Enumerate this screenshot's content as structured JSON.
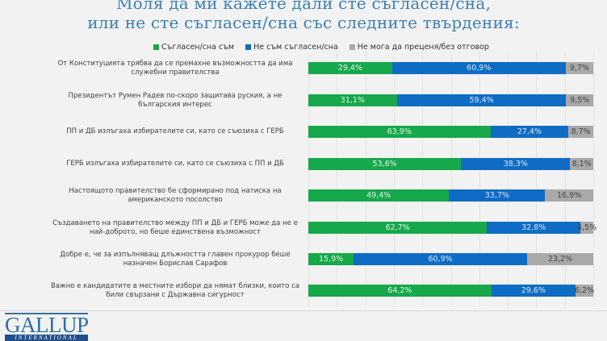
{
  "title": {
    "line1": "Моля да ми кажете дали сте съгласен/сна,",
    "line2": "или не сте съгласен/сна със следните твърдения:"
  },
  "legend": [
    {
      "label": "Съгласен/сна съм",
      "color": "#17a84b"
    },
    {
      "label": "Не съм съгласен/сна",
      "color": "#0f6cc4"
    },
    {
      "label": "Не мога да преценя/без отговор",
      "color": "#a9a9a9"
    }
  ],
  "logo": {
    "name": "GALLUP",
    "sub": "INTERNATIONAL"
  },
  "chart_data": {
    "type": "bar",
    "orientation": "horizontal",
    "stacked": true,
    "title": "Моля да ми кажете дали сте съгласен/сна, или не сте съгласен/сна със следните твърдения:",
    "xlabel": "",
    "ylabel": "",
    "xlim": [
      0,
      100
    ],
    "grid": true,
    "legend_position": "top",
    "categories": [
      "От Конституцията трябва да се премахне възможността да има служебни правителства",
      "Президентът Румен Радев по-скоро защитава руския, а не българския интерес",
      "ПП и ДБ излъгаха избирателите си, като се съюзиха с ГЕРБ",
      "ГЕРБ излъгаха избирателите си, като се съюзиха с ПП и ДБ",
      "Настоящото правителство бе сформирано под натиска на американското посолство",
      "Създаването на правителство между ПП и ДБ и ГЕРБ може да не е най-доброто, но беше единствена възможност",
      "Добре е, че за изпълняващ длъжността главен прокурор беше назначен Борислав Сарафов",
      "Важно е кандидатите в местните избори да нямат близки, които са били свързани с Държавна сигурност"
    ],
    "series": [
      {
        "name": "Съгласен/сна съм",
        "color": "#17a84b",
        "values": [
          29.4,
          31.1,
          63.9,
          53.6,
          49.4,
          62.7,
          15.9,
          64.2
        ],
        "labels": [
          "29,4%",
          "31,1%",
          "63,9%",
          "53,6%",
          "49,4%",
          "62,7%",
          "15,9%",
          "64,2%"
        ]
      },
      {
        "name": "Не съм съгласен/сна",
        "color": "#0f6cc4",
        "values": [
          60.9,
          59.4,
          27.4,
          38.3,
          33.7,
          32.8,
          60.9,
          29.6
        ],
        "labels": [
          "60,9%",
          "59,4%",
          "27,4%",
          "38,3%",
          "33,7%",
          "32,8%",
          "60,9%",
          "29,6%"
        ]
      },
      {
        "name": "Не мога да преценя/без отговор",
        "color": "#a9a9a9",
        "values": [
          9.7,
          9.5,
          8.7,
          8.1,
          16.9,
          4.5,
          23.2,
          6.2
        ],
        "labels": [
          "9,7%",
          "9,5%",
          "8,7%",
          "8,1%",
          "16,9%",
          "4,5%",
          "23,2%",
          "6,2%"
        ]
      }
    ]
  }
}
